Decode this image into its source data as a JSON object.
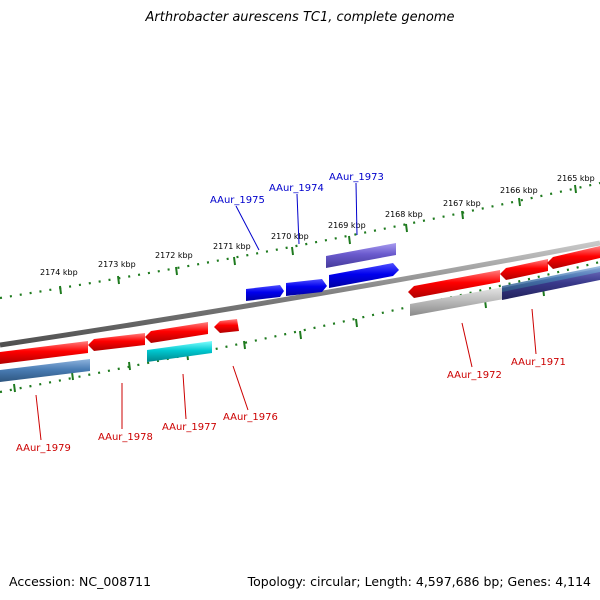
{
  "title": "Arthrobacter aurescens TC1, complete genome",
  "footer": {
    "accession": "Accession: NC_008711",
    "summary": "Topology: circular; Length: 4,597,686 bp; Genes: 4,114"
  },
  "colors": {
    "backbone": "#808080",
    "tick": "#1e7a1e",
    "forward_label": "#0000cc",
    "reverse_label": "#cc0000",
    "red_gene": "#ff0000",
    "blue_gene": "#0000ee",
    "slate_gene": "#4a7db5",
    "gray_gene": "#bbbbbb",
    "cyan_gene": "#00c8d0",
    "purple_gene": "#6a5acd",
    "navy_gene": "#3a3a8c"
  },
  "scale": {
    "unit": "kbp",
    "labels": [
      "2174 kbp",
      "2173 kbp",
      "2172 kbp",
      "2171 kbp",
      "2170 kbp",
      "2169 kbp",
      "2168 kbp",
      "2167 kbp",
      "2166 kbp",
      "2165 kbp"
    ]
  },
  "genes": [
    {
      "name": "AAur_1975",
      "strand": "forward"
    },
    {
      "name": "AAur_1974",
      "strand": "forward"
    },
    {
      "name": "AAur_1973",
      "strand": "forward"
    },
    {
      "name": "AAur_1979",
      "strand": "reverse"
    },
    {
      "name": "AAur_1978",
      "strand": "reverse"
    },
    {
      "name": "AAur_1977",
      "strand": "reverse"
    },
    {
      "name": "AAur_1976",
      "strand": "reverse"
    },
    {
      "name": "AAur_1972",
      "strand": "reverse"
    },
    {
      "name": "AAur_1971",
      "strand": "reverse"
    }
  ]
}
